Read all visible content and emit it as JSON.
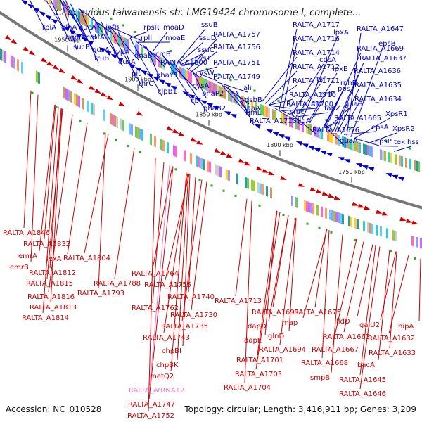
{
  "title": "Cupriavidus taiwanensis str. LMG19424 chromosome I, complete...",
  "accession": "Accession: NC_010528",
  "summary": "Topology: circular; Length: 3,416,911 bp; Genes: 3,209",
  "colors": {
    "forward": "#0000cc",
    "reverse": "#cc0000",
    "rna": "#e87fd2",
    "backbone": "#777777",
    "rna_mark": "#22aa22"
  },
  "ticks": [
    "1950 kbp",
    "1900 kbp",
    "1850 kbp",
    "1800 kbp",
    "1750 kbp"
  ],
  "forward_labels": [
    {
      "text": "rpiA"
    },
    {
      "text": "glnA"
    },
    {
      "text": "sucA"
    },
    {
      "text": "ugpB"
    },
    {
      "text": "ccoI"
    },
    {
      "text": "sucB"
    },
    {
      "text": "rbfA"
    },
    {
      "text": "nusA"
    },
    {
      "text": "infB"
    },
    {
      "text": "truB"
    },
    {
      "text": "typA"
    },
    {
      "text": "dusA"
    },
    {
      "text": "rpsR"
    },
    {
      "text": "moaD"
    },
    {
      "text": "rplI"
    },
    {
      "text": "moaE"
    },
    {
      "text": "dnaB"
    },
    {
      "text": "crcB"
    },
    {
      "text": "RALTA_A1800"
    },
    {
      "text": "pit"
    },
    {
      "text": "phaY1"
    },
    {
      "text": "thrC"
    },
    {
      "text": "clpB1"
    },
    {
      "text": "ssuB"
    },
    {
      "text": "ssuD"
    },
    {
      "text": "ssuC"
    },
    {
      "text": "cysT"
    },
    {
      "text": "cysW"
    },
    {
      "text": "cysA"
    },
    {
      "text": "cbl"
    },
    {
      "text": "RALTA_A1757"
    },
    {
      "text": "RALTA_A1756"
    },
    {
      "text": "RALTA_A1751"
    },
    {
      "text": "RALTA_A1749"
    },
    {
      "text": "phaP2"
    },
    {
      "text": "phaB2"
    },
    {
      "text": "alr"
    },
    {
      "text": "rimL"
    },
    {
      "text": "dsbB"
    },
    {
      "text": "iaaA"
    },
    {
      "text": "RALTA_A1717"
    },
    {
      "text": "RALTA_A1716"
    },
    {
      "text": "RALTA_A1714"
    },
    {
      "text": "RALTA_A1712"
    },
    {
      "text": "RALTA_A1711"
    },
    {
      "text": "RALTA_A1710"
    },
    {
      "text": "RALTA_A1700"
    },
    {
      "text": "RALTA_A1715"
    },
    {
      "text": "smc"
    },
    {
      "text": "lpxA"
    },
    {
      "text": "cdsA"
    },
    {
      "text": "lpxB"
    },
    {
      "text": "tsf"
    },
    {
      "text": "rnhB"
    },
    {
      "text": "pps"
    },
    {
      "text": "ecfE"
    },
    {
      "text": "frr"
    },
    {
      "text": "fabZ"
    },
    {
      "text": "ligA"
    },
    {
      "text": "RALTA_A1676"
    },
    {
      "text": "guaB"
    },
    {
      "text": "guaA"
    },
    {
      "text": "RALTA_A1647"
    },
    {
      "text": "RALTA_A1669"
    },
    {
      "text": "epsB"
    },
    {
      "text": "RALTA_A1637"
    },
    {
      "text": "RALTA_A1636"
    },
    {
      "text": "RALTA_A1635"
    },
    {
      "text": "RALTA_A1634"
    },
    {
      "text": "RALTA_A1665"
    },
    {
      "text": "XpsR1"
    },
    {
      "text": "epsA"
    },
    {
      "text": "XpsR2"
    },
    {
      "text": "epsP"
    },
    {
      "text": "tek"
    },
    {
      "text": "hss"
    }
  ],
  "reverse_labels": [
    {
      "text": "RALTA_A1846"
    },
    {
      "text": "RALTA_A1832"
    },
    {
      "text": "emrA"
    },
    {
      "text": "lexA"
    },
    {
      "text": "RALTA_A1804"
    },
    {
      "text": "emrB"
    },
    {
      "text": "RALTA_A1812"
    },
    {
      "text": "RALTA_A1815"
    },
    {
      "text": "RALTA_A1788"
    },
    {
      "text": "RALTA_A1816"
    },
    {
      "text": "RALTA_A1793"
    },
    {
      "text": "RALTA_A1813"
    },
    {
      "text": "RALTA_A1814"
    },
    {
      "text": "RALTA_A1764"
    },
    {
      "text": "RALTA_A1755"
    },
    {
      "text": "RALTA_A1740"
    },
    {
      "text": "RALTA_A1762"
    },
    {
      "text": "RALTA_A1730"
    },
    {
      "text": "RALTA_A1735"
    },
    {
      "text": "RALTA_A1743"
    },
    {
      "text": "chpBI"
    },
    {
      "text": "chpBK"
    },
    {
      "text": "metQ2"
    },
    {
      "text": "RALTA_AtRNA12",
      "rna": true
    },
    {
      "text": "RALTA_A1747"
    },
    {
      "text": "RALTA_A1752"
    },
    {
      "text": "RALTA_A1713"
    },
    {
      "text": "RALTA_A1699"
    },
    {
      "text": "dapD"
    },
    {
      "text": "map"
    },
    {
      "text": "glnD"
    },
    {
      "text": "dapE"
    },
    {
      "text": "RALTA_A1694"
    },
    {
      "text": "RALTA_A1701"
    },
    {
      "text": "RALTA_A1703"
    },
    {
      "text": "RALTA_A1704"
    },
    {
      "text": "RALTA_A1675"
    },
    {
      "text": "lldD"
    },
    {
      "text": "RALTA_A1663"
    },
    {
      "text": "RALTA_A1667"
    },
    {
      "text": "RALTA_A1668"
    },
    {
      "text": "smpB"
    },
    {
      "text": "galU2"
    },
    {
      "text": "RALTA_A1632"
    },
    {
      "text": "hipA"
    },
    {
      "text": "RALTA_A1633"
    },
    {
      "text": "bacA"
    },
    {
      "text": "RALTA_A1645"
    },
    {
      "text": "RALTA_A1646"
    }
  ]
}
